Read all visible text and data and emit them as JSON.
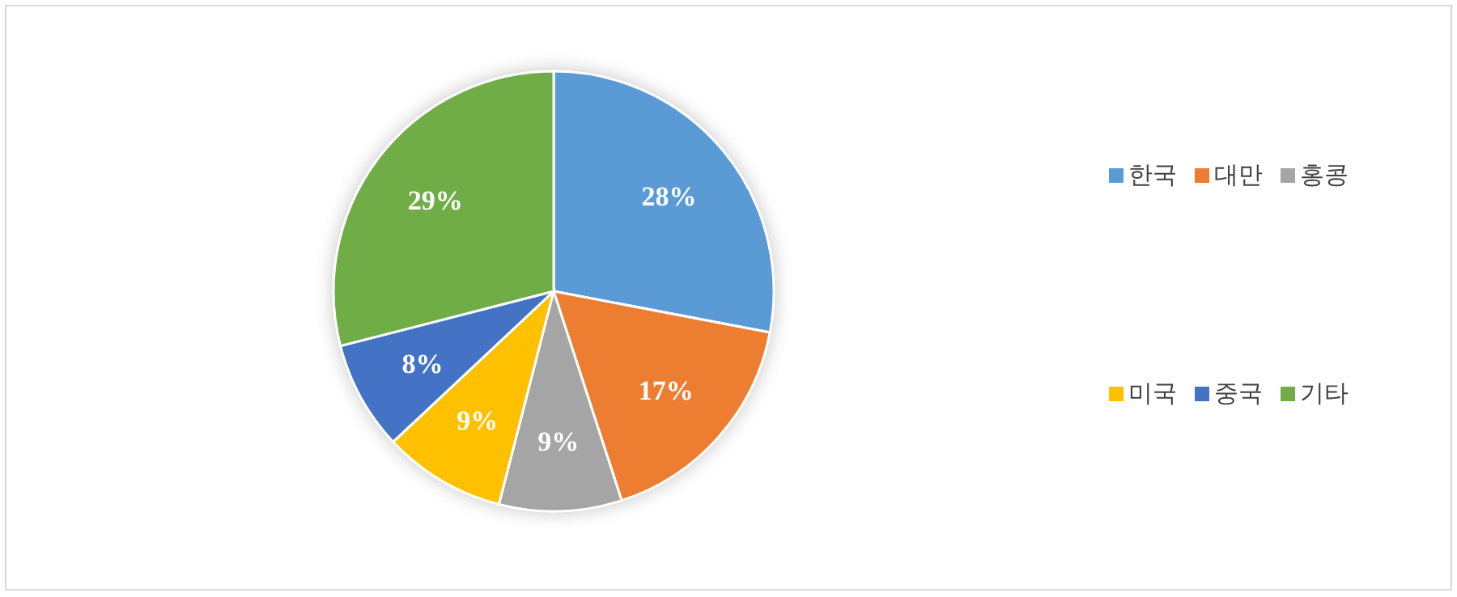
{
  "chart_data": {
    "type": "pie",
    "categories": [
      "한국",
      "대만",
      "홍콩",
      "미국",
      "중국",
      "기타"
    ],
    "values": [
      28,
      17,
      9,
      9,
      8,
      29
    ],
    "colors": [
      "#5b9bd5",
      "#ed7d31",
      "#a5a5a5",
      "#ffc000",
      "#4472c4",
      "#70ad47"
    ],
    "value_labels": [
      "28%",
      "17%",
      "9%",
      "9%",
      "8%",
      "29%"
    ],
    "legend": "right"
  }
}
